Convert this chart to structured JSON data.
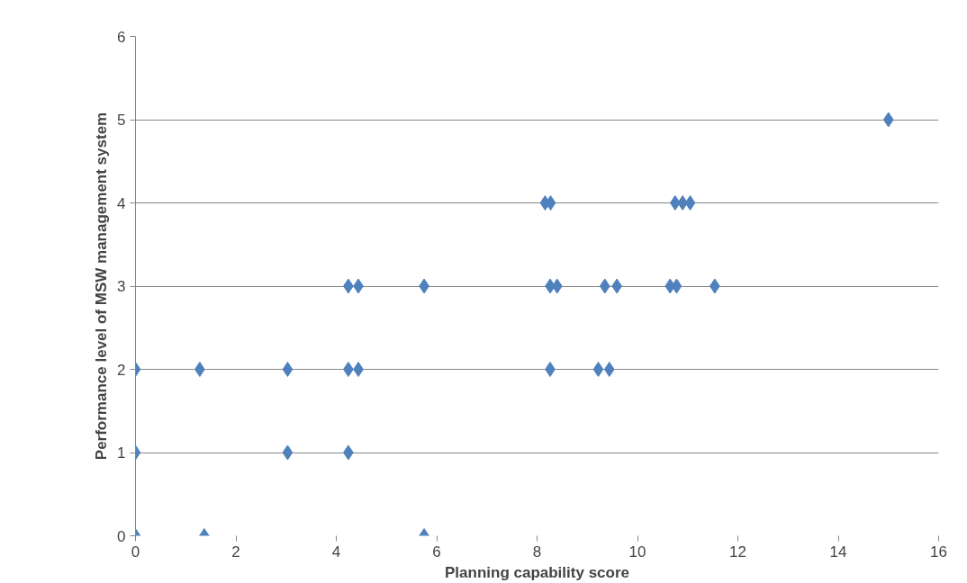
{
  "chart_data": {
    "type": "scatter",
    "xlabel": "Planning capability score",
    "ylabel": "Performance level of MSW management system",
    "series": [
      {
        "color": "#4f81bd",
        "x": [
          15,
          8.16,
          8.27,
          10.75,
          10.9,
          11.05,
          4.24,
          4.44,
          5.75,
          8.26,
          8.4,
          9.35,
          9.59,
          10.65,
          10.78,
          11.54,
          0,
          1.28,
          3.03,
          4.24,
          4.44,
          8.26,
          9.22,
          9.44,
          0,
          3.03,
          4.24,
          0,
          1.37,
          5.75
        ],
        "values": [
          5,
          4,
          4,
          4,
          4,
          4,
          3,
          3,
          3,
          3,
          3,
          3,
          3,
          3,
          3,
          3,
          2,
          2,
          2,
          2,
          2,
          2,
          2,
          2,
          1,
          1,
          1,
          0,
          0,
          0
        ]
      }
    ],
    "xlim": [
      0,
      16
    ],
    "ylim": [
      0,
      6
    ],
    "xticks": [
      0,
      2,
      4,
      6,
      8,
      10,
      12,
      14,
      16
    ],
    "yticks": [
      0,
      1,
      2,
      3,
      4,
      5,
      6
    ],
    "grid": "y",
    "marker": "diamond"
  }
}
